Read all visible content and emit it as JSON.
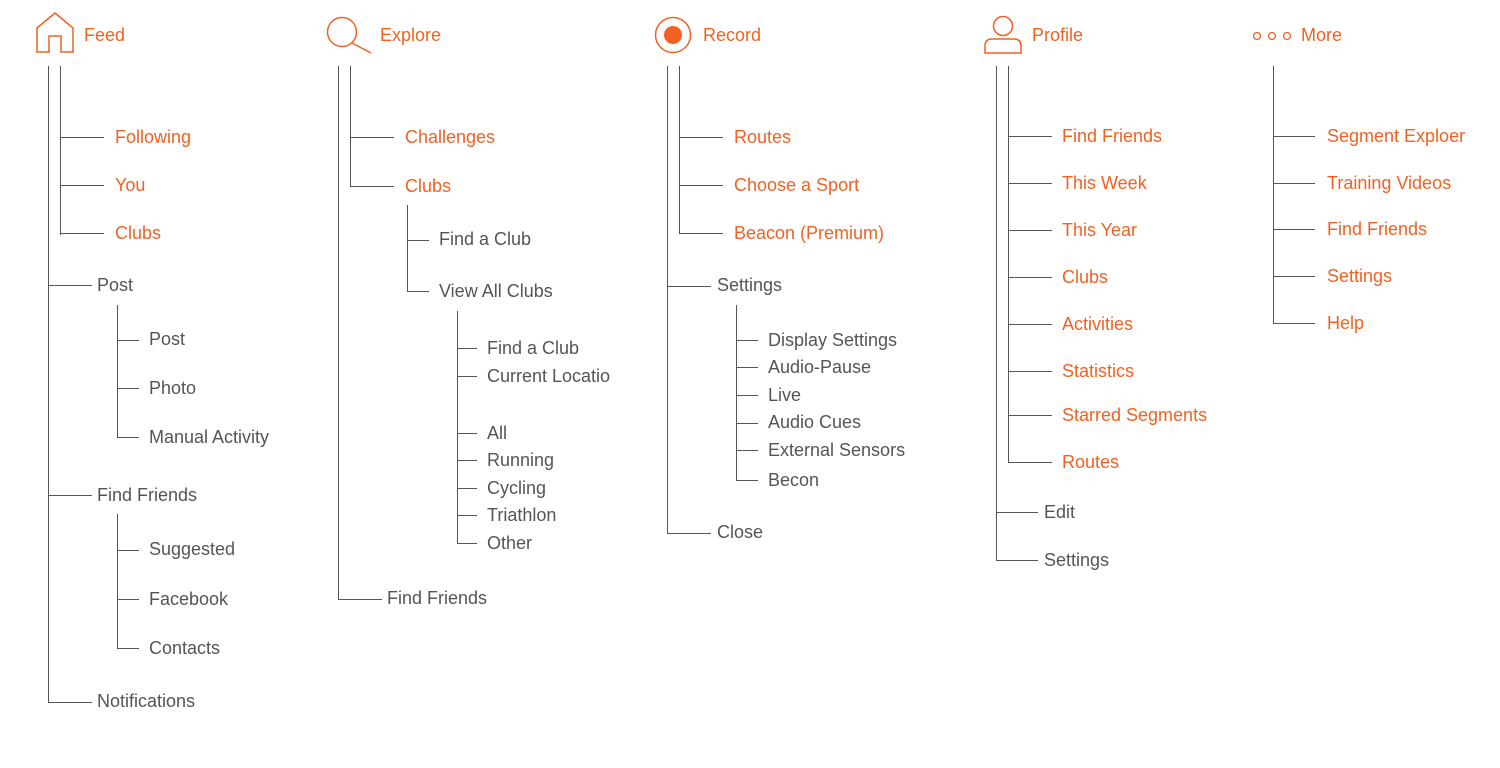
{
  "colors": {
    "accent": "#F26122",
    "text": "#555555",
    "line": "#555555"
  },
  "tabs": [
    {
      "id": "feed",
      "label": "Feed",
      "icon": "home-icon",
      "children": [
        {
          "label": "Following"
        },
        {
          "label": "You"
        },
        {
          "label": "Clubs"
        },
        {
          "label": "Post",
          "children": [
            {
              "label": "Post"
            },
            {
              "label": "Photo"
            },
            {
              "label": "Manual Activity"
            }
          ]
        },
        {
          "label": "Find Friends",
          "children": [
            {
              "label": "Suggested"
            },
            {
              "label": "Facebook"
            },
            {
              "label": "Contacts"
            }
          ]
        },
        {
          "label": "Notifications"
        }
      ]
    },
    {
      "id": "explore",
      "label": "Explore",
      "icon": "search-icon",
      "children": [
        {
          "label": "Challenges"
        },
        {
          "label": "Clubs",
          "children": [
            {
              "label": "Find a Club"
            },
            {
              "label": "View All Clubs",
              "children": [
                {
                  "label": "Find a Club"
                },
                {
                  "label": "Current Locatio"
                },
                {
                  "label": "All"
                },
                {
                  "label": "Running"
                },
                {
                  "label": "Cycling"
                },
                {
                  "label": "Triathlon"
                },
                {
                  "label": "Other"
                }
              ]
            }
          ]
        },
        {
          "label": "Find Friends"
        }
      ]
    },
    {
      "id": "record",
      "label": "Record",
      "icon": "record-icon",
      "children": [
        {
          "label": "Routes"
        },
        {
          "label": "Choose a Sport"
        },
        {
          "label": "Beacon (Premium)"
        },
        {
          "label": "Settings",
          "children": [
            {
              "label": "Display Settings"
            },
            {
              "label": "Audio-Pause"
            },
            {
              "label": "Live"
            },
            {
              "label": "Audio Cues"
            },
            {
              "label": "External Sensors"
            },
            {
              "label": "Becon"
            }
          ]
        },
        {
          "label": "Close"
        }
      ]
    },
    {
      "id": "profile",
      "label": "Profile",
      "icon": "user-icon",
      "children": [
        {
          "label": "Find Friends"
        },
        {
          "label": "This Week"
        },
        {
          "label": "This Year"
        },
        {
          "label": "Clubs"
        },
        {
          "label": "Activities"
        },
        {
          "label": "Statistics"
        },
        {
          "label": "Starred Segments"
        },
        {
          "label": "Routes"
        },
        {
          "label": "Edit"
        },
        {
          "label": "Settings"
        }
      ]
    },
    {
      "id": "more",
      "label": "More",
      "icon": "more-dots-icon",
      "children": [
        {
          "label": "Segment Exploer"
        },
        {
          "label": "Training Videos"
        },
        {
          "label": "Find Friends"
        },
        {
          "label": "Settings"
        },
        {
          "label": "Help"
        }
      ]
    }
  ]
}
